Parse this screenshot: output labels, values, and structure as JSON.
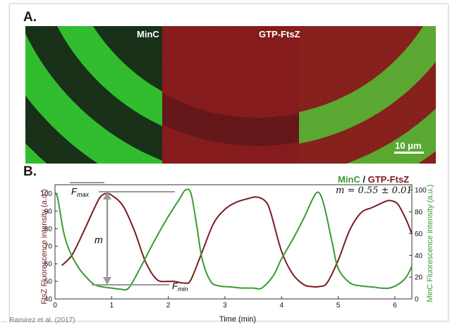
{
  "panel_a": {
    "label": "A.",
    "panels": [
      {
        "label": "MinC",
        "color": "#2fbf2a"
      },
      {
        "label": "GTP-FtsZ",
        "color": "#c4171b"
      },
      {
        "label": "",
        "color": "merge"
      }
    ],
    "scale_bar": "10 μm"
  },
  "panel_b": {
    "label": "B.",
    "legend": {
      "minc": "MinC",
      "separator": " / ",
      "ftsz": "GTP-FtsZ"
    },
    "slope": "m = 0.55 ± 0.01",
    "annotations": {
      "fmax": "F",
      "fmax_sub": "max",
      "fmin": "F",
      "fmin_sub": "min",
      "m": "m"
    }
  },
  "chart_data": {
    "type": "line",
    "title": "",
    "xlabel": "Time (min)",
    "ylabel": "FtsZ Fluorescence intensity (a.u.)",
    "y2label": "MinC Fluorescence intensity (a.u.)",
    "xlim": [
      0,
      6.3
    ],
    "ylim": [
      40,
      105
    ],
    "y2lim": [
      0,
      105
    ],
    "xticks": [
      0,
      1,
      2,
      3,
      4,
      5,
      6
    ],
    "yticks": [
      40,
      50,
      60,
      70,
      80,
      90,
      100
    ],
    "y2ticks": [
      0,
      20,
      40,
      60,
      80,
      100
    ],
    "series": [
      {
        "name": "GTP-FtsZ",
        "axis": "left",
        "color": "#7a1a22",
        "x": [
          0.12,
          0.3,
          0.5,
          0.7,
          0.8,
          0.9,
          1.0,
          1.2,
          1.4,
          1.6,
          1.8,
          2.0,
          2.1,
          2.3,
          2.4,
          2.6,
          2.8,
          3.0,
          3.2,
          3.4,
          3.55,
          3.7,
          3.8,
          4.0,
          4.2,
          4.4,
          4.55,
          4.65,
          4.8,
          5.0,
          5.2,
          5.4,
          5.6,
          5.8,
          5.9,
          6.05,
          6.2,
          6.3
        ],
        "y": [
          59,
          65,
          78,
          92,
          98,
          100,
          99,
          93,
          79,
          61,
          51,
          50,
          50,
          49,
          51,
          67,
          83,
          91,
          95,
          97,
          98,
          96,
          90,
          67,
          54,
          48,
          47,
          47,
          49,
          62,
          79,
          89,
          92,
          95,
          96,
          94,
          85,
          77
        ]
      },
      {
        "name": "MinC",
        "axis": "right",
        "color": "#3a9a33",
        "x": [
          0.0,
          0.05,
          0.15,
          0.25,
          0.4,
          0.55,
          0.7,
          0.85,
          1.0,
          1.15,
          1.3,
          1.5,
          1.7,
          1.9,
          2.05,
          2.2,
          2.3,
          2.4,
          2.5,
          2.6,
          2.75,
          2.9,
          3.1,
          3.3,
          3.5,
          3.65,
          3.85,
          4.0,
          4.2,
          4.4,
          4.55,
          4.65,
          4.75,
          4.9,
          5.0,
          5.2,
          5.4,
          5.6,
          5.75,
          5.9,
          6.05,
          6.2,
          6.3
        ],
        "y": [
          98,
          92,
          62,
          45,
          30,
          20,
          13,
          11,
          10,
          9,
          10,
          28,
          48,
          67,
          80,
          92,
          100,
          97,
          68,
          36,
          16,
          12,
          11,
          10,
          10,
          10,
          21,
          37,
          55,
          75,
          92,
          98,
          86,
          50,
          28,
          15,
          12,
          11,
          10,
          10,
          13,
          20,
          30
        ]
      }
    ]
  },
  "footer": "... Ramirez et al. (2017)"
}
